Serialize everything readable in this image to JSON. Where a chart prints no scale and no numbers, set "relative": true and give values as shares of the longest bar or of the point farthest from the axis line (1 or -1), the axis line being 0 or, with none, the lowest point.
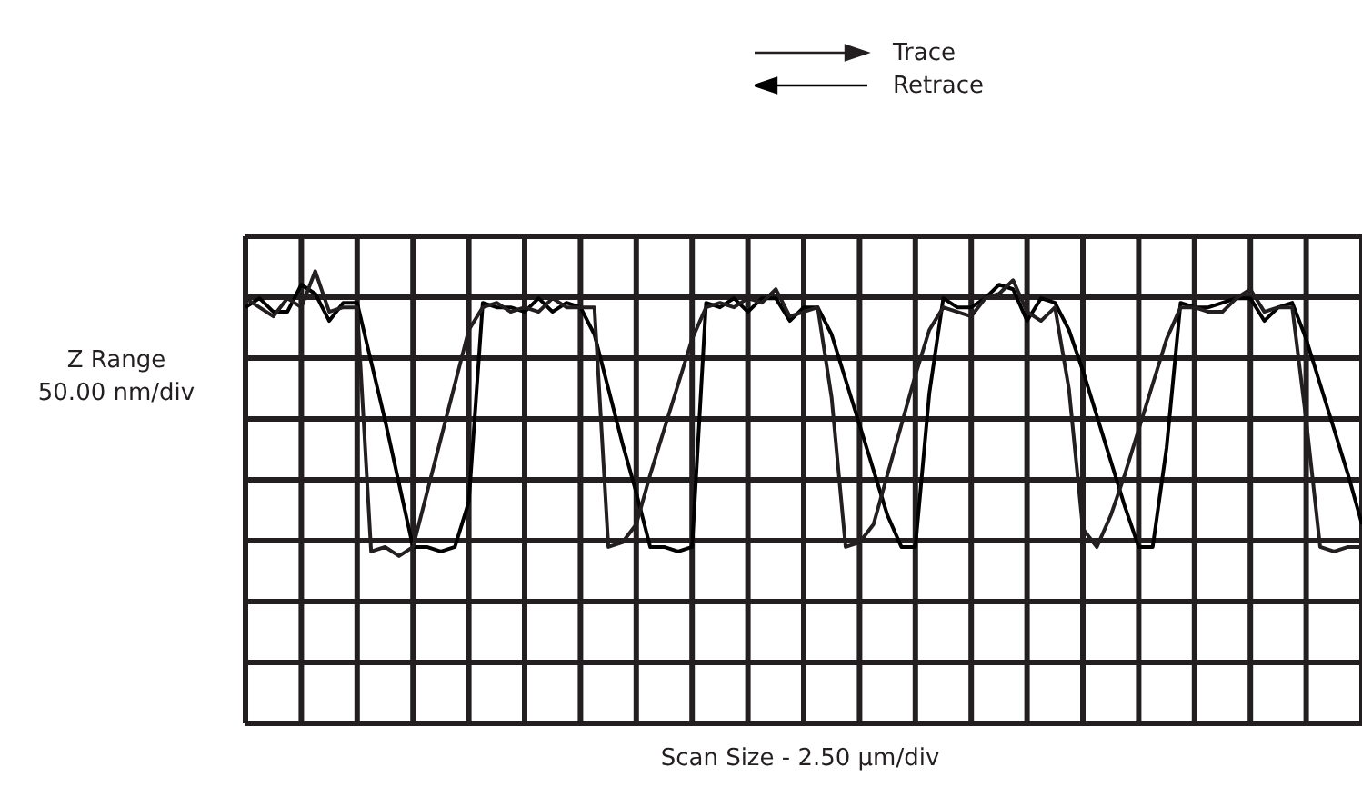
{
  "chart_data": {
    "type": "line",
    "relative": true,
    "xlabel": "Scan Size - 2.50 µm/div",
    "ylabel": "Z Range 50.00 nm/div",
    "grid": true,
    "legend": "top",
    "marker": "none",
    "line_style": "solid",
    "categories": [
      null,
      null,
      null,
      null,
      null,
      null,
      null,
      null,
      null,
      null,
      null,
      null,
      null,
      null,
      null,
      null,
      null,
      null,
      null,
      null,
      null,
      null,
      null,
      null,
      null,
      null,
      null,
      null,
      null,
      null,
      null,
      null,
      null,
      null,
      null,
      null,
      null,
      null,
      null,
      null,
      null,
      null,
      null,
      null,
      null,
      null,
      null,
      null,
      null,
      null,
      null,
      null,
      null,
      null,
      null,
      null,
      null,
      null,
      null,
      null,
      null,
      null,
      null,
      null,
      null,
      null,
      null,
      null,
      null,
      null,
      null,
      null,
      null,
      null,
      null,
      null,
      null,
      null,
      null,
      null,
      null
    ],
    "series": [
      {
        "name": "Trace",
        "color": "#231f20",
        "values": [
          0.94,
          0.92,
          0.9,
          0.94,
          0.92,
          1,
          0.91,
          0.92,
          0.92,
          0.38,
          0.39,
          0.37,
          0.39,
          0.51,
          0.63,
          0.75,
          0.87,
          0.92,
          0.93,
          0.91,
          0.92,
          0.91,
          0.94,
          0.92,
          0.92,
          0.92,
          0.39,
          0.4,
          0.44,
          0.55,
          0.65,
          0.75,
          0.85,
          0.92,
          0.93,
          0.92,
          0.94,
          0.93,
          0.96,
          0.9,
          0.91,
          0.92,
          0.72,
          0.39,
          0.4,
          0.44,
          0.55,
          0.66,
          0.77,
          0.87,
          0.92,
          0.91,
          0.9,
          0.94,
          0.95,
          0.98,
          0.91,
          0.89,
          0.92,
          0.74,
          0.43,
          0.39,
          0.46,
          0.55,
          0.65,
          0.75,
          0.85,
          0.92,
          0.92,
          0.91,
          0.91,
          0.94,
          0.96,
          0.91,
          0.92,
          0.92,
          0.67,
          0.39,
          0.38,
          0.39,
          0.39
        ]
      },
      {
        "name": "Retrace",
        "color": "#000000",
        "values": [
          0.92,
          0.94,
          0.91,
          0.91,
          0.97,
          0.95,
          0.89,
          0.93,
          0.93,
          0.8,
          0.67,
          0.53,
          0.39,
          0.39,
          0.38,
          0.39,
          0.49,
          0.93,
          0.92,
          0.92,
          0.91,
          0.94,
          0.91,
          0.93,
          0.92,
          0.86,
          0.74,
          0.62,
          0.51,
          0.39,
          0.39,
          0.38,
          0.39,
          0.93,
          0.92,
          0.94,
          0.91,
          0.94,
          0.94,
          0.89,
          0.92,
          0.92,
          0.86,
          0.76,
          0.66,
          0.56,
          0.46,
          0.39,
          0.39,
          0.73,
          0.94,
          0.92,
          0.92,
          0.94,
          0.97,
          0.96,
          0.89,
          0.94,
          0.93,
          0.87,
          0.78,
          0.68,
          0.58,
          0.48,
          0.39,
          0.39,
          0.61,
          0.93,
          0.92,
          0.92,
          0.93,
          0.94,
          0.94,
          0.89,
          0.92,
          0.93,
          0.85,
          0.75,
          0.65,
          0.55,
          0.44
        ]
      }
    ]
  }
}
